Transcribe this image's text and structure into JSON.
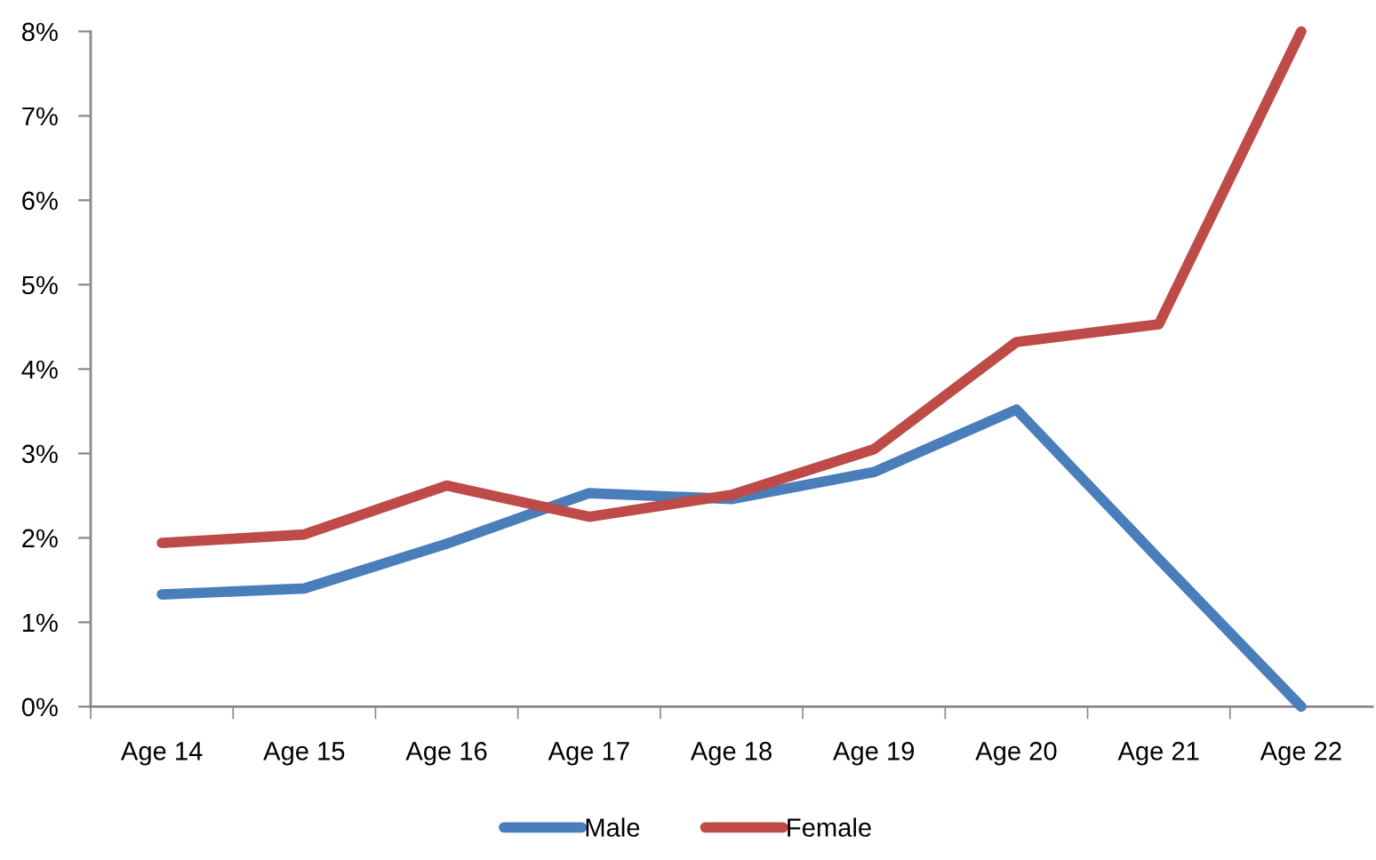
{
  "chart_data": {
    "type": "line",
    "categories": [
      "Age 14",
      "Age 15",
      "Age 16",
      "Age 17",
      "Age 18",
      "Age 19",
      "Age 20",
      "Age 21",
      "Age 22"
    ],
    "series": [
      {
        "name": "Male",
        "color": "#4a7ebb",
        "values": [
          1.33,
          1.4,
          1.93,
          2.53,
          2.46,
          2.78,
          3.52,
          1.75,
          0
        ]
      },
      {
        "name": "Female",
        "color": "#be4b48",
        "values": [
          1.94,
          2.04,
          2.62,
          2.25,
          2.51,
          3.05,
          4.32,
          4.53,
          8
        ]
      }
    ],
    "ylim": [
      0,
      8
    ],
    "yticks": [
      {
        "value": 0,
        "label": "0%"
      },
      {
        "value": 1,
        "label": "1%"
      },
      {
        "value": 2,
        "label": "2%"
      },
      {
        "value": 3,
        "label": "3%"
      },
      {
        "value": 4,
        "label": "4%"
      },
      {
        "value": 5,
        "label": "5%"
      },
      {
        "value": 6,
        "label": "6%"
      },
      {
        "value": 7,
        "label": "7%"
      },
      {
        "value": 8,
        "label": "8%"
      }
    ],
    "grid": false,
    "legend": "bottom",
    "line_style": "solid"
  }
}
